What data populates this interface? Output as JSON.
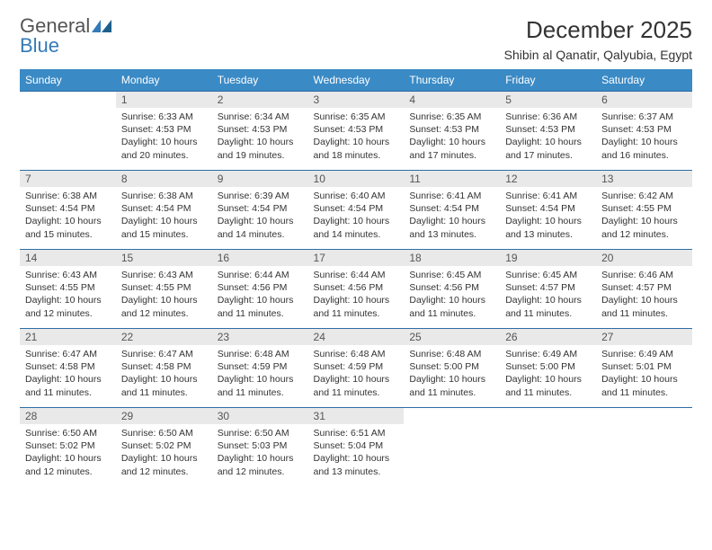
{
  "brand": {
    "part1": "General",
    "part2": "Blue"
  },
  "title": "December 2025",
  "location": "Shibin al Qanatir, Qalyubia, Egypt",
  "colors": {
    "header_bg": "#3a8ac5",
    "header_text": "#ffffff",
    "row_divider": "#2e6da4",
    "daynum_bg": "#e9e9e9",
    "brand_blue": "#337ab7",
    "text": "#333333"
  },
  "calendar": {
    "type": "table",
    "day_headers": [
      "Sunday",
      "Monday",
      "Tuesday",
      "Wednesday",
      "Thursday",
      "Friday",
      "Saturday"
    ],
    "weeks": [
      [
        {
          "day": "",
          "sunrise": "",
          "sunset": "",
          "daylight": ""
        },
        {
          "day": "1",
          "sunrise": "Sunrise: 6:33 AM",
          "sunset": "Sunset: 4:53 PM",
          "daylight": "Daylight: 10 hours and 20 minutes."
        },
        {
          "day": "2",
          "sunrise": "Sunrise: 6:34 AM",
          "sunset": "Sunset: 4:53 PM",
          "daylight": "Daylight: 10 hours and 19 minutes."
        },
        {
          "day": "3",
          "sunrise": "Sunrise: 6:35 AM",
          "sunset": "Sunset: 4:53 PM",
          "daylight": "Daylight: 10 hours and 18 minutes."
        },
        {
          "day": "4",
          "sunrise": "Sunrise: 6:35 AM",
          "sunset": "Sunset: 4:53 PM",
          "daylight": "Daylight: 10 hours and 17 minutes."
        },
        {
          "day": "5",
          "sunrise": "Sunrise: 6:36 AM",
          "sunset": "Sunset: 4:53 PM",
          "daylight": "Daylight: 10 hours and 17 minutes."
        },
        {
          "day": "6",
          "sunrise": "Sunrise: 6:37 AM",
          "sunset": "Sunset: 4:53 PM",
          "daylight": "Daylight: 10 hours and 16 minutes."
        }
      ],
      [
        {
          "day": "7",
          "sunrise": "Sunrise: 6:38 AM",
          "sunset": "Sunset: 4:54 PM",
          "daylight": "Daylight: 10 hours and 15 minutes."
        },
        {
          "day": "8",
          "sunrise": "Sunrise: 6:38 AM",
          "sunset": "Sunset: 4:54 PM",
          "daylight": "Daylight: 10 hours and 15 minutes."
        },
        {
          "day": "9",
          "sunrise": "Sunrise: 6:39 AM",
          "sunset": "Sunset: 4:54 PM",
          "daylight": "Daylight: 10 hours and 14 minutes."
        },
        {
          "day": "10",
          "sunrise": "Sunrise: 6:40 AM",
          "sunset": "Sunset: 4:54 PM",
          "daylight": "Daylight: 10 hours and 14 minutes."
        },
        {
          "day": "11",
          "sunrise": "Sunrise: 6:41 AM",
          "sunset": "Sunset: 4:54 PM",
          "daylight": "Daylight: 10 hours and 13 minutes."
        },
        {
          "day": "12",
          "sunrise": "Sunrise: 6:41 AM",
          "sunset": "Sunset: 4:54 PM",
          "daylight": "Daylight: 10 hours and 13 minutes."
        },
        {
          "day": "13",
          "sunrise": "Sunrise: 6:42 AM",
          "sunset": "Sunset: 4:55 PM",
          "daylight": "Daylight: 10 hours and 12 minutes."
        }
      ],
      [
        {
          "day": "14",
          "sunrise": "Sunrise: 6:43 AM",
          "sunset": "Sunset: 4:55 PM",
          "daylight": "Daylight: 10 hours and 12 minutes."
        },
        {
          "day": "15",
          "sunrise": "Sunrise: 6:43 AM",
          "sunset": "Sunset: 4:55 PM",
          "daylight": "Daylight: 10 hours and 12 minutes."
        },
        {
          "day": "16",
          "sunrise": "Sunrise: 6:44 AM",
          "sunset": "Sunset: 4:56 PM",
          "daylight": "Daylight: 10 hours and 11 minutes."
        },
        {
          "day": "17",
          "sunrise": "Sunrise: 6:44 AM",
          "sunset": "Sunset: 4:56 PM",
          "daylight": "Daylight: 10 hours and 11 minutes."
        },
        {
          "day": "18",
          "sunrise": "Sunrise: 6:45 AM",
          "sunset": "Sunset: 4:56 PM",
          "daylight": "Daylight: 10 hours and 11 minutes."
        },
        {
          "day": "19",
          "sunrise": "Sunrise: 6:45 AM",
          "sunset": "Sunset: 4:57 PM",
          "daylight": "Daylight: 10 hours and 11 minutes."
        },
        {
          "day": "20",
          "sunrise": "Sunrise: 6:46 AM",
          "sunset": "Sunset: 4:57 PM",
          "daylight": "Daylight: 10 hours and 11 minutes."
        }
      ],
      [
        {
          "day": "21",
          "sunrise": "Sunrise: 6:47 AM",
          "sunset": "Sunset: 4:58 PM",
          "daylight": "Daylight: 10 hours and 11 minutes."
        },
        {
          "day": "22",
          "sunrise": "Sunrise: 6:47 AM",
          "sunset": "Sunset: 4:58 PM",
          "daylight": "Daylight: 10 hours and 11 minutes."
        },
        {
          "day": "23",
          "sunrise": "Sunrise: 6:48 AM",
          "sunset": "Sunset: 4:59 PM",
          "daylight": "Daylight: 10 hours and 11 minutes."
        },
        {
          "day": "24",
          "sunrise": "Sunrise: 6:48 AM",
          "sunset": "Sunset: 4:59 PM",
          "daylight": "Daylight: 10 hours and 11 minutes."
        },
        {
          "day": "25",
          "sunrise": "Sunrise: 6:48 AM",
          "sunset": "Sunset: 5:00 PM",
          "daylight": "Daylight: 10 hours and 11 minutes."
        },
        {
          "day": "26",
          "sunrise": "Sunrise: 6:49 AM",
          "sunset": "Sunset: 5:00 PM",
          "daylight": "Daylight: 10 hours and 11 minutes."
        },
        {
          "day": "27",
          "sunrise": "Sunrise: 6:49 AM",
          "sunset": "Sunset: 5:01 PM",
          "daylight": "Daylight: 10 hours and 11 minutes."
        }
      ],
      [
        {
          "day": "28",
          "sunrise": "Sunrise: 6:50 AM",
          "sunset": "Sunset: 5:02 PM",
          "daylight": "Daylight: 10 hours and 12 minutes."
        },
        {
          "day": "29",
          "sunrise": "Sunrise: 6:50 AM",
          "sunset": "Sunset: 5:02 PM",
          "daylight": "Daylight: 10 hours and 12 minutes."
        },
        {
          "day": "30",
          "sunrise": "Sunrise: 6:50 AM",
          "sunset": "Sunset: 5:03 PM",
          "daylight": "Daylight: 10 hours and 12 minutes."
        },
        {
          "day": "31",
          "sunrise": "Sunrise: 6:51 AM",
          "sunset": "Sunset: 5:04 PM",
          "daylight": "Daylight: 10 hours and 13 minutes."
        },
        {
          "day": "",
          "sunrise": "",
          "sunset": "",
          "daylight": ""
        },
        {
          "day": "",
          "sunrise": "",
          "sunset": "",
          "daylight": ""
        },
        {
          "day": "",
          "sunrise": "",
          "sunset": "",
          "daylight": ""
        }
      ]
    ]
  }
}
